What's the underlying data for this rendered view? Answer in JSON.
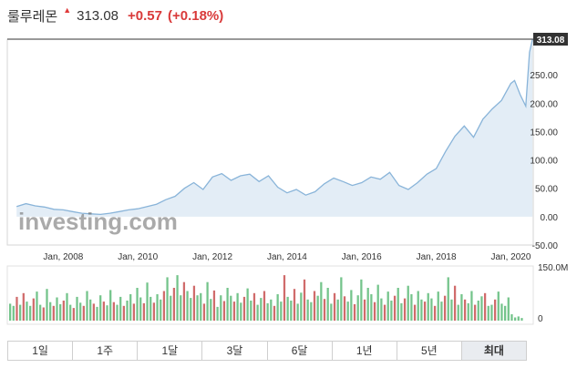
{
  "header": {
    "name": "룰루레몬",
    "price": "313.08",
    "change": "+0.57",
    "change_pct": "(+0.18%)"
  },
  "watermark": "investing.com",
  "colors": {
    "area_line": "#89b4d9",
    "area_fill": "#e3edf6",
    "volume_up": "#74c48b",
    "volume_down": "#d06b6b",
    "price_tag": "#333333",
    "change": "#d93a3a"
  },
  "price_tag": "313.08",
  "chart_data": [
    {
      "type": "area",
      "x": [
        2006.75,
        2007.0,
        2007.25,
        2007.5,
        2007.75,
        2008.0,
        2008.25,
        2008.5,
        2008.75,
        2009.0,
        2009.25,
        2009.5,
        2009.75,
        2010.0,
        2010.25,
        2010.5,
        2010.75,
        2011.0,
        2011.25,
        2011.5,
        2011.75,
        2012.0,
        2012.25,
        2012.5,
        2012.75,
        2013.0,
        2013.25,
        2013.5,
        2013.75,
        2014.0,
        2014.25,
        2014.5,
        2014.75,
        2015.0,
        2015.25,
        2015.5,
        2015.75,
        2016.0,
        2016.25,
        2016.5,
        2016.75,
        2017.0,
        2017.25,
        2017.5,
        2017.75,
        2018.0,
        2018.25,
        2018.5,
        2018.75,
        2019.0,
        2019.25,
        2019.5,
        2019.75,
        2020.0,
        2020.1,
        2020.25,
        2020.4,
        2020.5,
        2020.58
      ],
      "values": [
        18,
        23,
        19,
        17,
        13,
        12,
        9,
        6,
        5,
        4,
        6,
        9,
        12,
        14,
        18,
        22,
        30,
        36,
        50,
        60,
        48,
        70,
        76,
        64,
        72,
        75,
        62,
        72,
        52,
        42,
        48,
        38,
        44,
        58,
        68,
        62,
        55,
        60,
        70,
        66,
        78,
        55,
        48,
        60,
        75,
        85,
        115,
        142,
        160,
        140,
        172,
        190,
        205,
        235,
        240,
        215,
        195,
        290,
        313
      ],
      "xlim": [
        2006.5,
        2020.6
      ],
      "ylim": [
        -50,
        313
      ],
      "y_ticks": [
        "313.08",
        "250.00",
        "200.00",
        "150.00",
        "100.00",
        "50.00",
        "0.00",
        "-50.00"
      ],
      "x_ticks": [
        "Jan, 2008",
        "Jan, 2010",
        "Jan, 2012",
        "Jan, 2014",
        "Jan, 2016",
        "Jan, 2018",
        "Jan, 2020"
      ],
      "grid": false
    },
    {
      "type": "bar",
      "name": "volume",
      "values": [
        0.32,
        0.28,
        0.45,
        0.3,
        0.52,
        0.36,
        0.28,
        0.42,
        0.55,
        0.3,
        0.25,
        0.6,
        0.35,
        0.28,
        0.44,
        0.31,
        0.38,
        0.52,
        0.3,
        0.24,
        0.45,
        0.34,
        0.28,
        0.56,
        0.4,
        0.32,
        0.26,
        0.48,
        0.36,
        0.29,
        0.58,
        0.35,
        0.3,
        0.45,
        0.28,
        0.38,
        0.5,
        0.32,
        0.62,
        0.44,
        0.33,
        0.72,
        0.45,
        0.34,
        0.5,
        0.4,
        0.56,
        0.82,
        0.47,
        0.62,
        0.86,
        0.48,
        0.73,
        0.56,
        0.43,
        0.66,
        0.48,
        0.52,
        0.32,
        0.73,
        0.41,
        0.57,
        0.26,
        0.48,
        0.37,
        0.62,
        0.47,
        0.36,
        0.52,
        0.34,
        0.45,
        0.61,
        0.38,
        0.52,
        0.3,
        0.43,
        0.56,
        0.33,
        0.4,
        0.28,
        0.5,
        0.36,
        0.86,
        0.45,
        0.38,
        0.6,
        0.32,
        0.53,
        0.78,
        0.4,
        0.35,
        0.56,
        0.47,
        0.73,
        0.41,
        0.62,
        0.32,
        0.52,
        0.4,
        0.82,
        0.46,
        0.36,
        0.58,
        0.31,
        0.48,
        0.78,
        0.4,
        0.62,
        0.5,
        0.35,
        0.68,
        0.42,
        0.3,
        0.55,
        0.38,
        0.47,
        0.62,
        0.33,
        0.42,
        0.66,
        0.5,
        0.3,
        0.56,
        0.4,
        0.36,
        0.52,
        0.42,
        0.28,
        0.55,
        0.36,
        0.47,
        0.82,
        0.4,
        0.66,
        0.3,
        0.5,
        0.4,
        0.33,
        0.56,
        0.3,
        0.38,
        0.46,
        0.52,
        0.28,
        0.3,
        0.4,
        0.55,
        0.32,
        0.28,
        0.44,
        0.12,
        0.06,
        0.08,
        0.05
      ],
      "colors": [
        "u",
        "u",
        "d",
        "u",
        "d",
        "u",
        "u",
        "d",
        "u",
        "u",
        "d",
        "u",
        "u",
        "d",
        "u",
        "u",
        "d",
        "u",
        "u",
        "d",
        "u",
        "u",
        "d",
        "u",
        "u",
        "d",
        "u",
        "u",
        "d",
        "u",
        "u",
        "d",
        "u",
        "u",
        "d",
        "u",
        "u",
        "d",
        "u",
        "u",
        "d",
        "u",
        "u",
        "d",
        "u",
        "u",
        "d",
        "u",
        "u",
        "d",
        "u",
        "u",
        "d",
        "u",
        "u",
        "d",
        "u",
        "u",
        "d",
        "u",
        "u",
        "d",
        "u",
        "u",
        "d",
        "u",
        "u",
        "d",
        "u",
        "u",
        "d",
        "u",
        "u",
        "d",
        "u",
        "u",
        "d",
        "u",
        "u",
        "d",
        "u",
        "u",
        "d",
        "u",
        "u",
        "d",
        "u",
        "u",
        "d",
        "u",
        "u",
        "d",
        "u",
        "u",
        "d",
        "u",
        "u",
        "d",
        "u",
        "u",
        "d",
        "u",
        "u",
        "d",
        "u",
        "u",
        "d",
        "u",
        "u",
        "d",
        "u",
        "u",
        "d",
        "u",
        "u",
        "d",
        "u",
        "u",
        "d",
        "u",
        "u",
        "d",
        "u",
        "u",
        "d",
        "u",
        "u",
        "d",
        "u",
        "u",
        "d",
        "u",
        "u",
        "d",
        "u",
        "u",
        "d",
        "u",
        "u",
        "d",
        "u",
        "u",
        "d",
        "u",
        "u",
        "d",
        "u",
        "u"
      ],
      "y_ticks": [
        "150.0M",
        "0"
      ]
    }
  ],
  "tabs": [
    {
      "label": "1일",
      "active": false
    },
    {
      "label": "1주",
      "active": false
    },
    {
      "label": "1달",
      "active": false
    },
    {
      "label": "3달",
      "active": false
    },
    {
      "label": "6달",
      "active": false
    },
    {
      "label": "1년",
      "active": false
    },
    {
      "label": "5년",
      "active": false
    },
    {
      "label": "최대",
      "active": true
    }
  ]
}
